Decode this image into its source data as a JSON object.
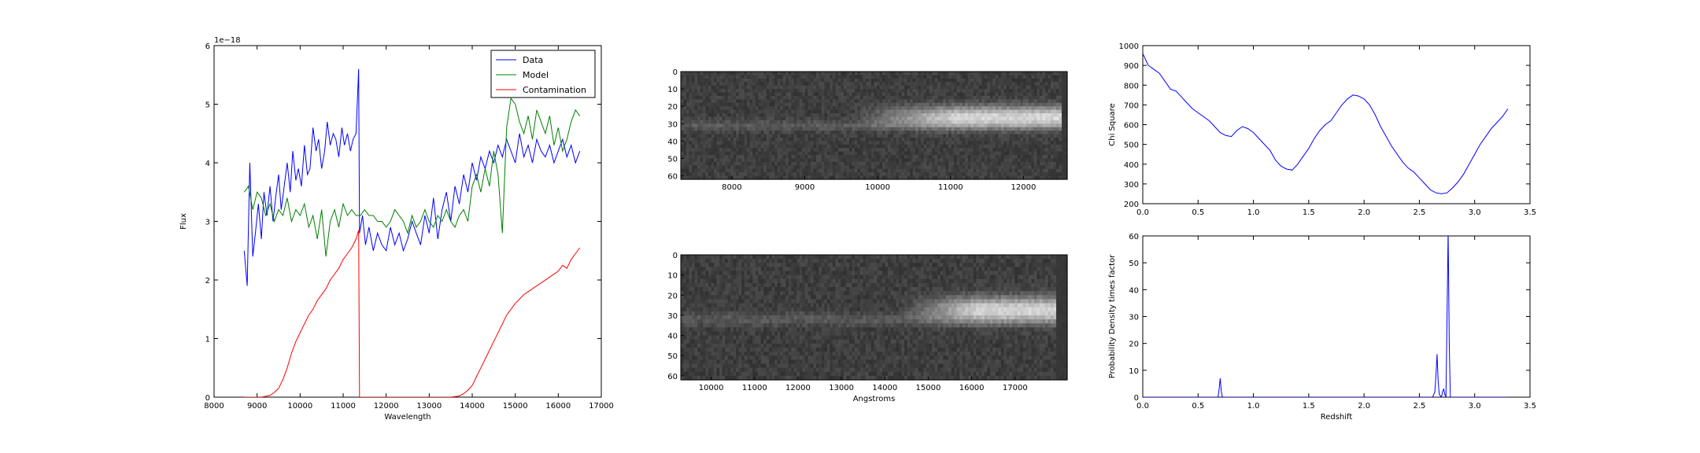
{
  "colors": {
    "data": "#0000ff",
    "model": "#008000",
    "contamination": "#ff0000",
    "axis": "#000000"
  },
  "chart_data": [
    {
      "id": "spectrum",
      "type": "line",
      "xlabel": "Wavelength",
      "ylabel": "Flux",
      "exponent_label": "1e−18",
      "xlim": [
        8000,
        17000
      ],
      "ylim": [
        0,
        6
      ],
      "xticks": [
        8000,
        9000,
        10000,
        11000,
        12000,
        13000,
        14000,
        15000,
        16000,
        17000
      ],
      "yticks": [
        0,
        1,
        2,
        3,
        4,
        5,
        6
      ],
      "legend": {
        "placement": "top-right",
        "entries": [
          "Data",
          "Model",
          "Contamination"
        ]
      },
      "series": [
        {
          "name": "Data",
          "color": "#0000ff",
          "x": [
            8700,
            8770,
            8830,
            8900,
            8960,
            9030,
            9100,
            9160,
            9230,
            9300,
            9370,
            9430,
            9500,
            9560,
            9630,
            9700,
            9770,
            9830,
            9900,
            9960,
            10030,
            10100,
            10170,
            10230,
            10300,
            10370,
            10430,
            10500,
            10570,
            10630,
            10700,
            10770,
            10830,
            10900,
            10970,
            11030,
            11100,
            11170,
            11230,
            11300,
            11360,
            11380,
            11450,
            11520,
            11600,
            11700,
            11800,
            11900,
            12000,
            12100,
            12200,
            12300,
            12400,
            12500,
            12600,
            12700,
            12800,
            12900,
            13000,
            13100,
            13200,
            13300,
            13400,
            13500,
            13600,
            13700,
            13800,
            13900,
            14000,
            14100,
            14200,
            14300,
            14400,
            14500,
            14600,
            14700,
            14800,
            14900,
            15000,
            15100,
            15200,
            15300,
            15400,
            15500,
            15600,
            15700,
            15800,
            15900,
            16000,
            16100,
            16200,
            16300,
            16400,
            16500
          ],
          "y": [
            2.5,
            1.9,
            4.0,
            2.4,
            2.8,
            3.3,
            2.7,
            3.5,
            3.1,
            3.6,
            3.0,
            3.4,
            3.8,
            3.2,
            3.6,
            4.0,
            3.5,
            4.2,
            3.7,
            3.9,
            3.6,
            4.3,
            3.8,
            3.9,
            4.6,
            4.2,
            4.4,
            3.9,
            4.2,
            4.7,
            4.3,
            4.5,
            4.4,
            4.1,
            4.6,
            4.3,
            4.5,
            4.2,
            4.4,
            4.5,
            5.6,
            2.8,
            3.1,
            2.6,
            2.9,
            2.5,
            2.8,
            2.6,
            2.5,
            2.9,
            2.6,
            2.8,
            2.5,
            2.7,
            3.0,
            2.8,
            2.6,
            3.1,
            2.8,
            3.4,
            2.7,
            3.2,
            3.5,
            3.0,
            3.6,
            3.3,
            3.8,
            3.5,
            4.0,
            3.7,
            4.1,
            3.9,
            4.2,
            4.0,
            4.3,
            4.1,
            4.4,
            4.2,
            4.0,
            4.5,
            4.1,
            4.3,
            4.0,
            4.4,
            4.2,
            4.1,
            4.3,
            4.0,
            4.2,
            4.4,
            4.1,
            4.3,
            4.0,
            4.2
          ]
        },
        {
          "name": "Model",
          "color": "#008000",
          "x": [
            8700,
            8800,
            8900,
            9000,
            9100,
            9200,
            9300,
            9400,
            9500,
            9600,
            9700,
            9800,
            9900,
            10000,
            10100,
            10200,
            10300,
            10400,
            10500,
            10600,
            10700,
            10800,
            10900,
            11000,
            11100,
            11200,
            11300,
            11400,
            11500,
            11600,
            11700,
            11800,
            11900,
            12000,
            12100,
            12200,
            12300,
            12400,
            12500,
            12600,
            12700,
            12800,
            12900,
            13000,
            13100,
            13200,
            13300,
            13400,
            13500,
            13600,
            13700,
            13800,
            13900,
            14000,
            14100,
            14200,
            14300,
            14400,
            14500,
            14600,
            14700,
            14800,
            14900,
            15000,
            15100,
            15200,
            15300,
            15400,
            15500,
            15600,
            15700,
            15800,
            15900,
            16000,
            16100,
            16200,
            16300,
            16400,
            16500
          ],
          "y": [
            3.5,
            3.6,
            3.2,
            3.5,
            3.4,
            3.1,
            3.3,
            3.0,
            3.2,
            3.1,
            3.4,
            3.0,
            3.2,
            3.1,
            3.3,
            2.9,
            3.1,
            2.7,
            3.2,
            2.4,
            3.0,
            3.2,
            2.9,
            3.3,
            3.1,
            3.2,
            3.1,
            3.1,
            3.2,
            3.1,
            3.1,
            3.0,
            3.0,
            2.9,
            3.0,
            3.2,
            3.1,
            3.0,
            2.8,
            3.1,
            2.9,
            3.0,
            3.2,
            3.0,
            2.9,
            3.1,
            3.0,
            3.2,
            3.0,
            2.9,
            3.1,
            3.2,
            3.0,
            3.6,
            3.8,
            3.5,
            3.9,
            3.6,
            4.2,
            3.8,
            2.8,
            4.6,
            5.1,
            5.0,
            4.7,
            4.5,
            4.8,
            4.4,
            4.9,
            4.7,
            4.5,
            4.8,
            4.3,
            4.6,
            4.2,
            4.4,
            4.7,
            4.9,
            4.8
          ]
        },
        {
          "name": "Contamination",
          "color": "#ff0000",
          "x": [
            8700,
            8900,
            9100,
            9300,
            9400,
            9500,
            9600,
            9700,
            9800,
            9900,
            10000,
            10100,
            10200,
            10300,
            10400,
            10500,
            10600,
            10700,
            10800,
            10900,
            11000,
            11100,
            11200,
            11300,
            11360,
            11380,
            11500,
            12000,
            12500,
            13000,
            13500,
            13700,
            13800,
            13900,
            14000,
            14100,
            14200,
            14300,
            14400,
            14500,
            14600,
            14700,
            14800,
            14900,
            15000,
            15200,
            15400,
            15600,
            15800,
            16000,
            16100,
            16200,
            16300,
            16400,
            16500
          ],
          "y": [
            0,
            0,
            0,
            0.03,
            0.08,
            0.15,
            0.3,
            0.5,
            0.75,
            0.95,
            1.1,
            1.25,
            1.4,
            1.5,
            1.65,
            1.75,
            1.85,
            2.0,
            2.1,
            2.2,
            2.35,
            2.45,
            2.55,
            2.7,
            2.85,
            0,
            0,
            0,
            0,
            0,
            0,
            0.02,
            0.06,
            0.12,
            0.2,
            0.35,
            0.5,
            0.65,
            0.8,
            0.95,
            1.1,
            1.25,
            1.4,
            1.5,
            1.6,
            1.75,
            1.85,
            1.95,
            2.05,
            2.15,
            2.25,
            2.2,
            2.35,
            2.45,
            2.55
          ]
        }
      ]
    },
    {
      "id": "image-top",
      "type": "heatmap",
      "xlim": [
        7300,
        12600
      ],
      "ylim": [
        62,
        0
      ],
      "xticks": [
        8000,
        9000,
        10000,
        11000,
        12000
      ],
      "yticks": [
        0,
        10,
        20,
        30,
        40,
        50,
        60
      ],
      "xlabel": "",
      "trace_center_row": 31,
      "bright_region": [
        9600,
        12500
      ]
    },
    {
      "id": "image-bottom",
      "type": "heatmap",
      "xlim": [
        9300,
        18200
      ],
      "ylim": [
        62,
        0
      ],
      "xticks": [
        10000,
        11000,
        12000,
        13000,
        14000,
        15000,
        16000,
        17000
      ],
      "yticks": [
        0,
        10,
        20,
        30,
        40,
        50,
        60
      ],
      "xlabel": "Angstroms",
      "trace_center_row": 32,
      "bright_region": [
        14300,
        17900
      ]
    },
    {
      "id": "chisq",
      "type": "line",
      "xlabel": "",
      "ylabel": "Chi Square",
      "xlim": [
        0,
        3.5
      ],
      "ylim": [
        200,
        1000
      ],
      "xticks": [
        0.0,
        0.5,
        1.0,
        1.5,
        2.0,
        2.5,
        3.0,
        3.5
      ],
      "yticks": [
        200,
        300,
        400,
        500,
        600,
        700,
        800,
        900,
        1000
      ],
      "series": [
        {
          "name": "",
          "color": "#0000ff",
          "x": [
            0,
            0.05,
            0.1,
            0.15,
            0.2,
            0.25,
            0.3,
            0.35,
            0.4,
            0.45,
            0.5,
            0.55,
            0.6,
            0.65,
            0.7,
            0.75,
            0.8,
            0.85,
            0.9,
            0.95,
            1.0,
            1.05,
            1.1,
            1.15,
            1.2,
            1.25,
            1.3,
            1.35,
            1.4,
            1.45,
            1.5,
            1.55,
            1.6,
            1.65,
            1.7,
            1.75,
            1.8,
            1.85,
            1.9,
            1.95,
            2.0,
            2.05,
            2.1,
            2.15,
            2.2,
            2.25,
            2.3,
            2.35,
            2.4,
            2.45,
            2.5,
            2.55,
            2.6,
            2.65,
            2.7,
            2.75,
            2.8,
            2.85,
            2.9,
            2.95,
            3.0,
            3.05,
            3.1,
            3.15,
            3.2,
            3.25,
            3.3
          ],
          "y": [
            960,
            900,
            880,
            860,
            820,
            780,
            770,
            740,
            710,
            680,
            660,
            640,
            620,
            590,
            560,
            545,
            540,
            570,
            590,
            580,
            560,
            530,
            500,
            470,
            420,
            390,
            375,
            370,
            400,
            440,
            480,
            530,
            570,
            600,
            620,
            660,
            700,
            730,
            750,
            745,
            730,
            700,
            650,
            590,
            540,
            490,
            450,
            410,
            380,
            360,
            330,
            300,
            270,
            255,
            250,
            255,
            280,
            310,
            350,
            400,
            450,
            500,
            540,
            580,
            610,
            640,
            680
          ]
        }
      ]
    },
    {
      "id": "pdf",
      "type": "line",
      "xlabel": "Redshift",
      "ylabel": "Probability Density times factor",
      "xlim": [
        0,
        3.5
      ],
      "ylim": [
        0,
        60
      ],
      "xticks": [
        0.0,
        0.5,
        1.0,
        1.5,
        2.0,
        2.5,
        3.0,
        3.5
      ],
      "yticks": [
        0,
        10,
        20,
        30,
        40,
        50,
        60
      ],
      "series": [
        {
          "name": "",
          "color": "#0000ff",
          "x": [
            0,
            0.68,
            0.69,
            0.7,
            0.71,
            0.72,
            2.62,
            2.64,
            2.65,
            2.66,
            2.67,
            2.68,
            2.7,
            2.71,
            2.72,
            2.73,
            2.74,
            2.75,
            2.76,
            2.77,
            2.78,
            2.8,
            3.3
          ],
          "y": [
            0,
            0,
            3,
            7,
            2,
            0,
            0,
            2,
            8,
            16,
            6,
            1,
            0,
            2,
            3,
            1,
            0,
            30,
            62,
            20,
            0,
            0,
            0
          ]
        }
      ]
    }
  ]
}
